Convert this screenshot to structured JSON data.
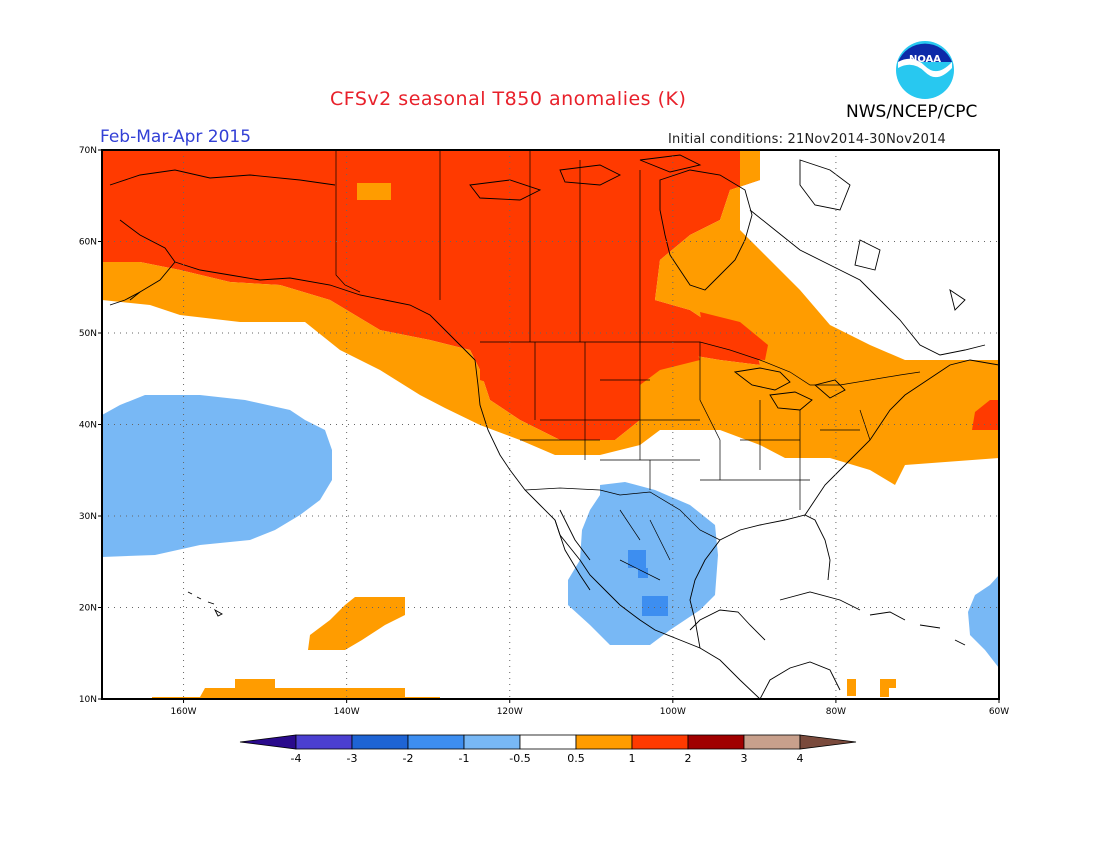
{
  "header": {
    "title": "CFSv2 seasonal T850 anomalies (K)",
    "period": "Feb-Mar-Apr 2015",
    "initial_conditions": "Initial conditions: 21Nov2014-30Nov2014",
    "agency": "NWS/NCEP/CPC",
    "logo_text": "NOAA"
  },
  "map": {
    "lon_range": [
      -170,
      -60
    ],
    "lat_range": [
      10,
      70
    ],
    "lon_ticks": [
      {
        "value": -160,
        "label": "160W"
      },
      {
        "value": -140,
        "label": "140W"
      },
      {
        "value": -120,
        "label": "120W"
      },
      {
        "value": -100,
        "label": "100W"
      },
      {
        "value": -80,
        "label": "80W"
      },
      {
        "value": -60,
        "label": "60W"
      }
    ],
    "lat_ticks": [
      {
        "value": 10,
        "label": "10N"
      },
      {
        "value": 20,
        "label": "20N"
      },
      {
        "value": 30,
        "label": "30N"
      },
      {
        "value": 40,
        "label": "40N"
      },
      {
        "value": 50,
        "label": "50N"
      },
      {
        "value": 60,
        "label": "60N"
      },
      {
        "value": 70,
        "label": "70N"
      }
    ],
    "grid": true
  },
  "colorbar": {
    "labels": [
      "-4",
      "-3",
      "-2",
      "-1",
      "-0.5",
      "0.5",
      "1",
      "2",
      "3",
      "4"
    ],
    "colors": {
      "below": "#2a0a8c",
      "bins": [
        "#4b3fd0",
        "#1e64d4",
        "#3d8ef0",
        "#78b8f5",
        "#ffffff",
        "#ff9c00",
        "#ff3a00",
        "#a00000",
        "#c8a08c"
      ],
      "above": "#7a4a3c"
    }
  }
}
